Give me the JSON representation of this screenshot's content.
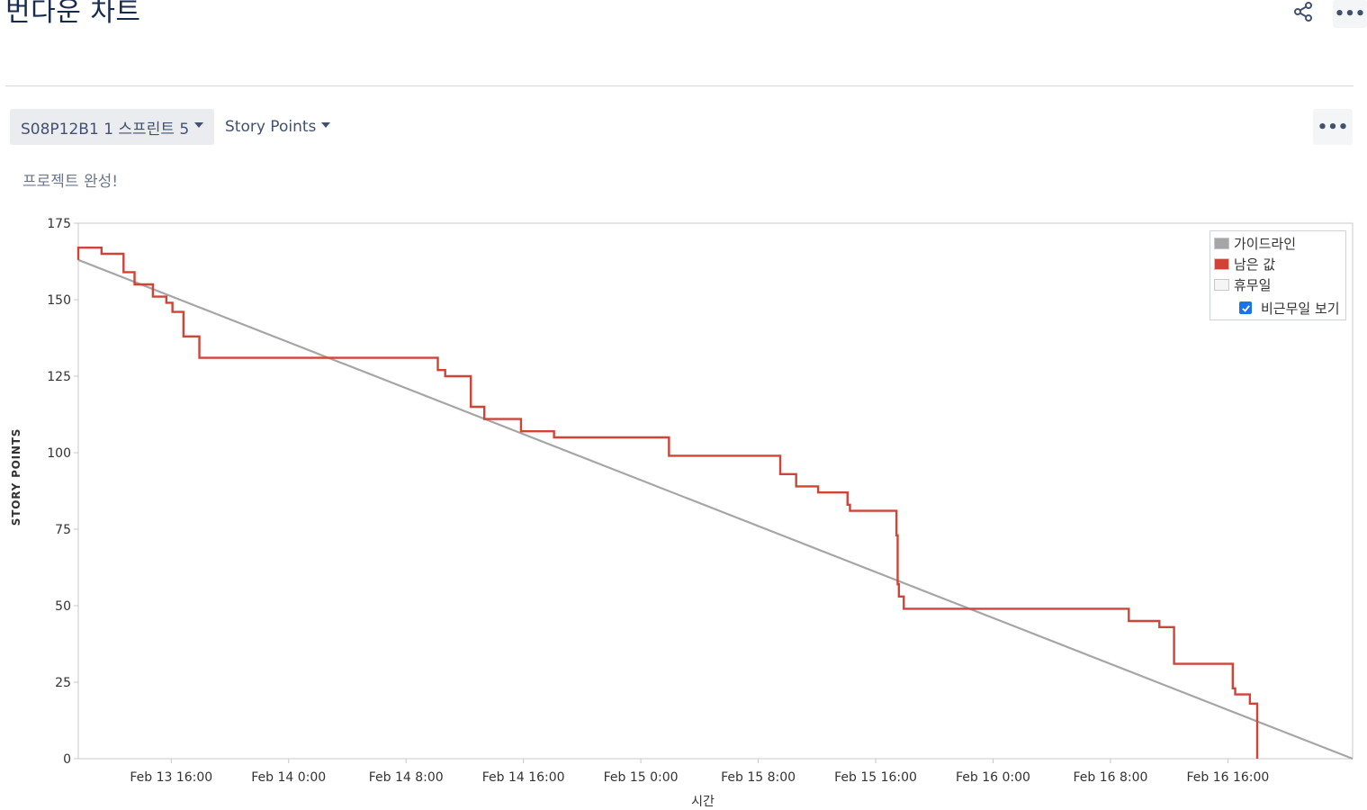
{
  "header": {
    "title": "번다운 차트"
  },
  "icons": {
    "share": "share-icon",
    "more_top": "more-icon",
    "more_right": "more-icon"
  },
  "controls": {
    "sprint_select": "S08P12B1 1 스프린트 5",
    "estimate_select": "Story Points"
  },
  "status_text": "프로젝트 완성!",
  "colors": {
    "guideline": "#a6a6a6",
    "remaining": "#d04437",
    "non_working": "#f5f5f5"
  },
  "legend": {
    "guideline": "가이드라인",
    "remaining": "남은 값",
    "non_working": "휴무일",
    "show_non_working_label": "비근무일 보기",
    "show_non_working_checked": true
  },
  "chart_data": {
    "type": "line",
    "ylabel": "STORY POINTS",
    "xlabel": "시간",
    "ylim": [
      0,
      175
    ],
    "yticks": [
      "0",
      "25",
      "50",
      "75",
      "100",
      "125",
      "150",
      "175"
    ],
    "xlim": [
      "Feb 13 9:40",
      "Feb 17 0:30"
    ],
    "xticks": [
      {
        "label": "Feb 13 16:00",
        "t": "2023-02-13T16:00"
      },
      {
        "label": "Feb 14 0:00",
        "t": "2023-02-14T00:00"
      },
      {
        "label": "Feb 14 8:00",
        "t": "2023-02-14T08:00"
      },
      {
        "label": "Feb 14 16:00",
        "t": "2023-02-14T16:00"
      },
      {
        "label": "Feb 15 0:00",
        "t": "2023-02-15T00:00"
      },
      {
        "label": "Feb 15 8:00",
        "t": "2023-02-15T08:00"
      },
      {
        "label": "Feb 15 16:00",
        "t": "2023-02-15T16:00"
      },
      {
        "label": "Feb 16 0:00",
        "t": "2023-02-16T00:00"
      },
      {
        "label": "Feb 16 8:00",
        "t": "2023-02-16T08:00"
      },
      {
        "label": "Feb 16 16:00",
        "t": "2023-02-16T16:00"
      }
    ],
    "grid": false,
    "legend_position": "top-right",
    "series": [
      {
        "name": "가이드라인",
        "points": [
          [
            "2023-02-13T09:40",
            163
          ],
          [
            "2023-02-17T00:30",
            0
          ]
        ]
      },
      {
        "name": "남은 값",
        "step": true,
        "points": [
          [
            "2023-02-13T09:40",
            163
          ],
          [
            "2023-02-13T09:40",
            167
          ],
          [
            "2023-02-13T11:15",
            165
          ],
          [
            "2023-02-13T12:45",
            159
          ],
          [
            "2023-02-13T13:30",
            155
          ],
          [
            "2023-02-13T14:45",
            151
          ],
          [
            "2023-02-13T15:40",
            149
          ],
          [
            "2023-02-13T16:05",
            146
          ],
          [
            "2023-02-13T16:50",
            138
          ],
          [
            "2023-02-13T17:55",
            131
          ],
          [
            "2023-02-14T10:10",
            127
          ],
          [
            "2023-02-14T10:40",
            125
          ],
          [
            "2023-02-14T12:25",
            115
          ],
          [
            "2023-02-14T13:20",
            111
          ],
          [
            "2023-02-14T15:50",
            107
          ],
          [
            "2023-02-14T18:05",
            105
          ],
          [
            "2023-02-15T01:55",
            99
          ],
          [
            "2023-02-15T09:30",
            93
          ],
          [
            "2023-02-15T10:35",
            89
          ],
          [
            "2023-02-15T12:05",
            87
          ],
          [
            "2023-02-15T14:05",
            83
          ],
          [
            "2023-02-15T14:15",
            81
          ],
          [
            "2023-02-15T17:25",
            73
          ],
          [
            "2023-02-15T17:30",
            57
          ],
          [
            "2023-02-15T17:35",
            53
          ],
          [
            "2023-02-15T17:55",
            49
          ],
          [
            "2023-02-16T09:15",
            45
          ],
          [
            "2023-02-16T11:20",
            43
          ],
          [
            "2023-02-16T12:20",
            31
          ],
          [
            "2023-02-16T16:20",
            23
          ],
          [
            "2023-02-16T16:30",
            21
          ],
          [
            "2023-02-16T17:30",
            18
          ],
          [
            "2023-02-16T18:00",
            0
          ]
        ]
      }
    ]
  }
}
